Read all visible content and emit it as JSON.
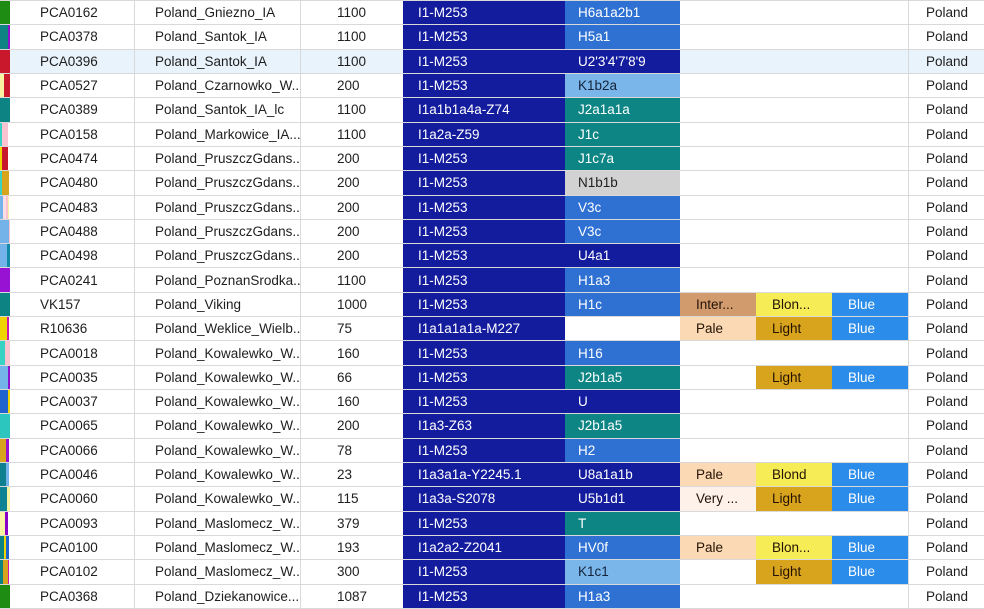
{
  "palette": {
    "y_haplogroup_navy": "#141c9e",
    "mt_navy": "#141c9e",
    "mt_blue": "#2e71d3",
    "mt_teal": "#0e8585",
    "mt_lightblue": "#7ab6ea",
    "mt_gray": "#d2d2d2",
    "skin_tan": "#d29b6e",
    "skin_pale": "#fbd9b4",
    "skin_verypale": "#fdf1ea",
    "hair_blond": "#f6ec55",
    "hair_light": "#d9a41d",
    "eye_blue": "#2b8de9",
    "row_highlight": "#e9f3fc",
    "grid_border": "#d9d9d9"
  },
  "rows": [
    {
      "id": "PCA0162",
      "site": "Poland_Gniezno_IA",
      "value": "1100",
      "y_hg": "I1-M253",
      "mt_hg": "H6a1a2b1",
      "mt_style": "blue",
      "skin": "",
      "skin_style": "",
      "hair": "",
      "hair_style": "",
      "eye": "",
      "eye_style": "",
      "country": "Poland",
      "highlighted": false,
      "strip": [
        [
          "#1e8c13",
          10
        ]
      ]
    },
    {
      "id": "PCA0378",
      "site": "Poland_Santok_IA",
      "value": "1100",
      "y_hg": "I1-M253",
      "mt_hg": "H5a1",
      "mt_style": "blue",
      "skin": "",
      "skin_style": "",
      "hair": "",
      "hair_style": "",
      "eye": "",
      "eye_style": "",
      "country": "Poland",
      "highlighted": false,
      "strip": [
        [
          "#0d8383",
          8
        ],
        [
          "#8c10cc",
          2
        ]
      ]
    },
    {
      "id": "PCA0396",
      "site": "Poland_Santok_IA",
      "value": "1100",
      "y_hg": "I1-M253",
      "mt_hg": "U2'3'4'7'8'9",
      "mt_style": "navy",
      "skin": "",
      "skin_style": "",
      "hair": "",
      "hair_style": "",
      "eye": "",
      "eye_style": "",
      "country": "Poland",
      "highlighted": true,
      "strip": [
        [
          "#c9182b",
          10
        ]
      ]
    },
    {
      "id": "PCA0527",
      "site": "Poland_Czarnowko_W...",
      "value": "200",
      "y_hg": "I1-M253",
      "mt_hg": "K1b2a",
      "mt_style": "lightblue",
      "skin": "",
      "skin_style": "",
      "hair": "",
      "hair_style": "",
      "eye": "",
      "eye_style": "",
      "country": "Poland",
      "highlighted": false,
      "strip": [
        [
          "#f8f3a2",
          4
        ],
        [
          "#c9182b",
          6
        ]
      ]
    },
    {
      "id": "PCA0389",
      "site": "Poland_Santok_IA_lc",
      "value": "1100",
      "y_hg": "I1a1b1a4a-Z74",
      "mt_hg": "J2a1a1a",
      "mt_style": "teal",
      "skin": "",
      "skin_style": "",
      "hair": "",
      "hair_style": "",
      "eye": "",
      "eye_style": "",
      "country": "Poland",
      "highlighted": false,
      "strip": [
        [
          "#0d8383",
          10
        ]
      ]
    },
    {
      "id": "PCA0158",
      "site": "Poland_Markowice_IA...",
      "value": "1100",
      "y_hg": "I1a2a-Z59",
      "mt_hg": "J1c",
      "mt_style": "teal",
      "skin": "",
      "skin_style": "",
      "hair": "",
      "hair_style": "",
      "eye": "",
      "eye_style": "",
      "country": "Poland",
      "highlighted": false,
      "strip": [
        [
          "#38d2c4",
          2
        ],
        [
          "#f9c3cf",
          6
        ]
      ]
    },
    {
      "id": "PCA0474",
      "site": "Poland_PruszczGdans...",
      "value": "200",
      "y_hg": "I1-M253",
      "mt_hg": "J1c7a",
      "mt_style": "teal",
      "skin": "",
      "skin_style": "",
      "hair": "",
      "hair_style": "",
      "eye": "",
      "eye_style": "",
      "country": "Poland",
      "highlighted": false,
      "strip": [
        [
          "#f0d400",
          2
        ],
        [
          "#c9182b",
          6
        ]
      ]
    },
    {
      "id": "PCA0480",
      "site": "Poland_PruszczGdans...",
      "value": "200",
      "y_hg": "I1-M253",
      "mt_hg": "N1b1b",
      "mt_style": "gray",
      "skin": "",
      "skin_style": "",
      "hair": "",
      "hair_style": "",
      "eye": "",
      "eye_style": "",
      "country": "Poland",
      "highlighted": false,
      "strip": [
        [
          "#38d2c4",
          2
        ],
        [
          "#d9a41d",
          7
        ]
      ]
    },
    {
      "id": "PCA0483",
      "site": "Poland_PruszczGdans...",
      "value": "200",
      "y_hg": "I1-M253",
      "mt_hg": "V3c",
      "mt_style": "blue",
      "skin": "",
      "skin_style": "",
      "hair": "",
      "hair_style": "",
      "eye": "",
      "eye_style": "",
      "country": "Poland",
      "highlighted": false,
      "strip": [
        [
          "#74b2ea",
          3
        ],
        [
          "#fbdde6",
          3
        ],
        [
          "#f9c3cf",
          2
        ],
        [
          "#f8f3a2",
          1
        ]
      ]
    },
    {
      "id": "PCA0488",
      "site": "Poland_PruszczGdans...",
      "value": "200",
      "y_hg": "I1-M253",
      "mt_hg": "V3c",
      "mt_style": "blue",
      "skin": "",
      "skin_style": "",
      "hair": "",
      "hair_style": "",
      "eye": "",
      "eye_style": "",
      "country": "Poland",
      "highlighted": false,
      "strip": [
        [
          "#74b2ea",
          9
        ],
        [
          "#f9c3cf",
          1
        ]
      ]
    },
    {
      "id": "PCA0498",
      "site": "Poland_PruszczGdans...",
      "value": "200",
      "y_hg": "I1-M253",
      "mt_hg": "U4a1",
      "mt_style": "navy",
      "skin": "",
      "skin_style": "",
      "hair": "",
      "hair_style": "",
      "eye": "",
      "eye_style": "",
      "country": "Poland",
      "highlighted": false,
      "strip": [
        [
          "#74b2ea",
          7
        ],
        [
          "#1289a5",
          3
        ]
      ]
    },
    {
      "id": "PCA0241",
      "site": "Poland_PoznanSrodka...",
      "value": "1100",
      "y_hg": "I1-M253",
      "mt_hg": "H1a3",
      "mt_style": "blue",
      "skin": "",
      "skin_style": "",
      "hair": "",
      "hair_style": "",
      "eye": "",
      "eye_style": "",
      "country": "Poland",
      "highlighted": false,
      "strip": [
        [
          "#9812d4",
          10
        ]
      ]
    },
    {
      "id": "VK157",
      "site": "Poland_Viking",
      "value": "1000",
      "y_hg": "I1-M253",
      "mt_hg": "H1c",
      "mt_style": "blue",
      "skin": "Inter...",
      "skin_style": "tan",
      "hair": "Blon...",
      "hair_style": "blond",
      "eye": "Blue",
      "eye_style": "blue",
      "country": "Poland",
      "highlighted": false,
      "strip": [
        [
          "#0d8383",
          10
        ]
      ]
    },
    {
      "id": "R10636",
      "site": "Poland_Weklice_Wielb...",
      "value": "75",
      "y_hg": "I1a1a1a1a-M227",
      "mt_hg": "",
      "mt_style": "",
      "skin": "Pale",
      "skin_style": "pale",
      "hair": "Light",
      "hair_style": "light",
      "eye": "Blue",
      "eye_style": "blue",
      "country": "Poland",
      "highlighted": false,
      "strip": [
        [
          "#f0d400",
          7
        ],
        [
          "#cc17ad",
          2
        ]
      ]
    },
    {
      "id": "PCA0018",
      "site": "Poland_Kowalewko_W...",
      "value": "160",
      "y_hg": "I1-M253",
      "mt_hg": "H16",
      "mt_style": "blue",
      "skin": "",
      "skin_style": "",
      "hair": "",
      "hair_style": "",
      "eye": "",
      "eye_style": "",
      "country": "Poland",
      "highlighted": false,
      "strip": [
        [
          "#38d2c4",
          5
        ],
        [
          "#f9c3cf",
          5
        ]
      ]
    },
    {
      "id": "PCA0035",
      "site": "Poland_Kowalewko_W...",
      "value": "66",
      "y_hg": "I1-M253",
      "mt_hg": "J2b1a5",
      "mt_style": "teal",
      "skin": "",
      "skin_style": "",
      "hair": "Light",
      "hair_style": "light",
      "eye": "Blue",
      "eye_style": "blue",
      "country": "Poland",
      "highlighted": false,
      "strip": [
        [
          "#74b2ea",
          8
        ],
        [
          "#8c10cc",
          2
        ]
      ]
    },
    {
      "id": "PCA0037",
      "site": "Poland_Kowalewko_W...",
      "value": "160",
      "y_hg": "I1-M253",
      "mt_hg": "U",
      "mt_style": "navy",
      "skin": "",
      "skin_style": "",
      "hair": "",
      "hair_style": "",
      "eye": "",
      "eye_style": "",
      "country": "Poland",
      "highlighted": false,
      "strip": [
        [
          "#2063ce",
          8
        ],
        [
          "#f0d400",
          2
        ]
      ]
    },
    {
      "id": "PCA0065",
      "site": "Poland_Kowalewko_W...",
      "value": "200",
      "y_hg": "I1a3-Z63",
      "mt_hg": "J2b1a5",
      "mt_style": "teal",
      "skin": "",
      "skin_style": "",
      "hair": "",
      "hair_style": "",
      "eye": "",
      "eye_style": "",
      "country": "Poland",
      "highlighted": false,
      "strip": [
        [
          "#2cc6be",
          10
        ]
      ]
    },
    {
      "id": "PCA0066",
      "site": "Poland_Kowalewko_W...",
      "value": "78",
      "y_hg": "I1-M253",
      "mt_hg": "H2",
      "mt_style": "blue",
      "skin": "",
      "skin_style": "",
      "hair": "",
      "hair_style": "",
      "eye": "",
      "eye_style": "",
      "country": "Poland",
      "highlighted": false,
      "strip": [
        [
          "#d9a41d",
          6
        ],
        [
          "#9812d4",
          3
        ]
      ]
    },
    {
      "id": "PCA0046",
      "site": "Poland_Kowalewko_W...",
      "value": "23",
      "y_hg": "I1a3a1a-Y2245.1",
      "mt_hg": "U8a1a1b",
      "mt_style": "navy",
      "skin": "Pale",
      "skin_style": "pale",
      "hair": "Blond",
      "hair_style": "blond",
      "eye": "Blue",
      "eye_style": "blue",
      "country": "Poland",
      "highlighted": false,
      "strip": [
        [
          "#0e8090",
          6
        ],
        [
          "#74b2ea",
          3
        ]
      ]
    },
    {
      "id": "PCA0060",
      "site": "Poland_Kowalewko_W...",
      "value": "115",
      "y_hg": "I1a3a-S2078",
      "mt_hg": "U5b1d1",
      "mt_style": "navy",
      "skin": "Very ...",
      "skin_style": "verypale",
      "hair": "Light",
      "hair_style": "light",
      "eye": "Blue",
      "eye_style": "blue",
      "country": "Poland",
      "highlighted": false,
      "strip": [
        [
          "#0e8195",
          7
        ],
        [
          "#f8f3a2",
          3
        ]
      ]
    },
    {
      "id": "PCA0093",
      "site": "Poland_Maslomecz_W...",
      "value": "379",
      "y_hg": "I1-M253",
      "mt_hg": "T",
      "mt_style": "teal",
      "skin": "",
      "skin_style": "",
      "hair": "",
      "hair_style": "",
      "eye": "",
      "eye_style": "",
      "country": "Poland",
      "highlighted": false,
      "strip": [
        [
          "#f8f3a2",
          5
        ],
        [
          "#8a00c8",
          3
        ]
      ]
    },
    {
      "id": "PCA0100",
      "site": "Poland_Maslomecz_W...",
      "value": "193",
      "y_hg": "I1a2a2-Z2041",
      "mt_hg": "HV0f",
      "mt_style": "blue",
      "skin": "Pale",
      "skin_style": "pale",
      "hair": "Blon...",
      "hair_style": "blond",
      "eye": "Blue",
      "eye_style": "blue",
      "country": "Poland",
      "highlighted": false,
      "strip": [
        [
          "#0d8383",
          4
        ],
        [
          "#f0d400",
          2
        ],
        [
          "#2063ce",
          3
        ]
      ]
    },
    {
      "id": "PCA0102",
      "site": "Poland_Maslomecz_W...",
      "value": "300",
      "y_hg": "I1-M253",
      "mt_hg": "K1c1",
      "mt_style": "lightblue",
      "skin": "",
      "skin_style": "",
      "hair": "Light",
      "hair_style": "light",
      "eye": "Blue",
      "eye_style": "blue",
      "country": "Poland",
      "highlighted": false,
      "strip": [
        [
          "#0d8383",
          3
        ],
        [
          "#d9a41d",
          5
        ],
        [
          "#cc17ad",
          1
        ]
      ]
    },
    {
      "id": "PCA0368",
      "site": "Poland_Dziekanowice...",
      "value": "1087",
      "y_hg": "I1-M253",
      "mt_hg": "H1a3",
      "mt_style": "blue",
      "skin": "",
      "skin_style": "",
      "hair": "",
      "hair_style": "",
      "eye": "",
      "eye_style": "",
      "country": "Poland",
      "highlighted": false,
      "strip": [
        [
          "#1e8c13",
          10
        ]
      ]
    }
  ]
}
